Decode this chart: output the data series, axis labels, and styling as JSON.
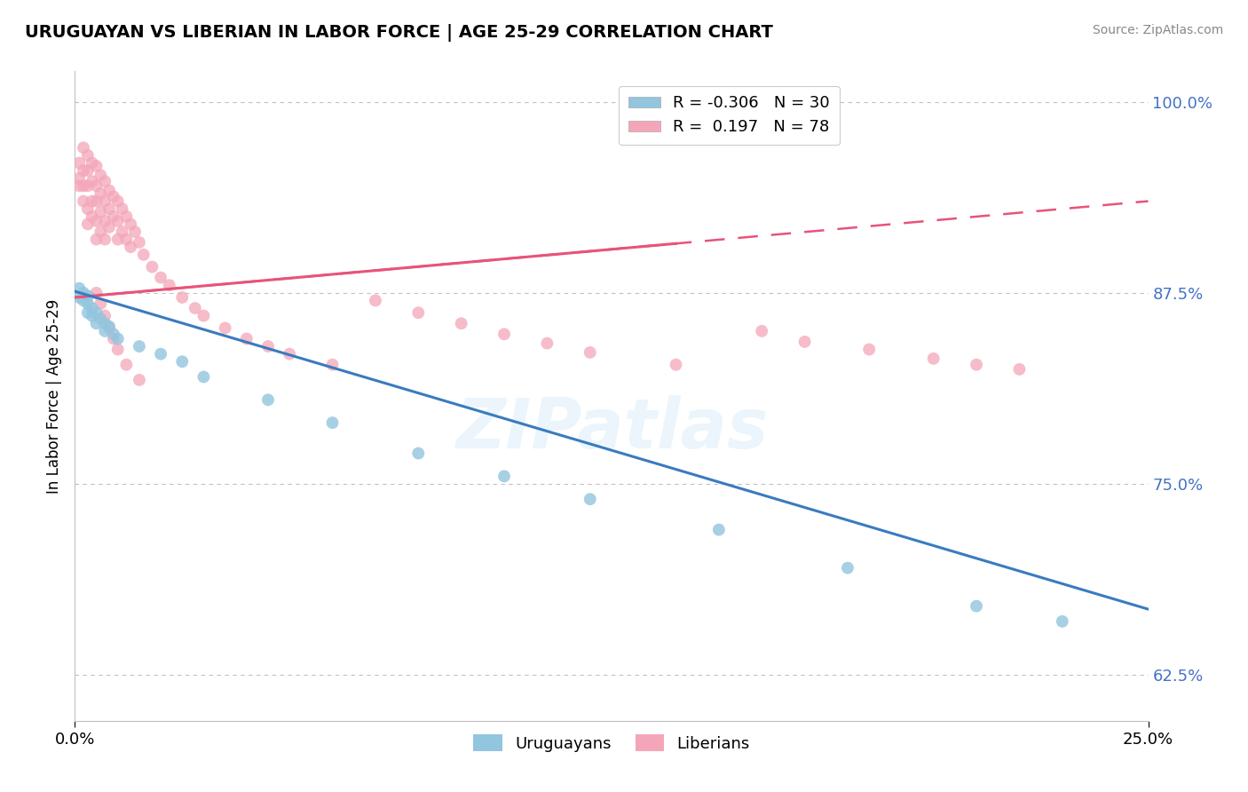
{
  "title": "URUGUAYAN VS LIBERIAN IN LABOR FORCE | AGE 25-29 CORRELATION CHART",
  "source": "Source: ZipAtlas.com",
  "ylabel": "In Labor Force | Age 25-29",
  "y_ticks": [
    0.625,
    0.75,
    0.875,
    1.0
  ],
  "y_tick_labels": [
    "62.5%",
    "75.0%",
    "87.5%",
    "100.0%"
  ],
  "uruguayan_R": -0.306,
  "uruguayan_N": 30,
  "liberian_R": 0.197,
  "liberian_N": 78,
  "uruguayan_color": "#92c5de",
  "liberian_color": "#f4a6b8",
  "uruguayan_line_color": "#3a7bbf",
  "liberian_line_color": "#e8537a",
  "watermark": "ZIPatlas",
  "uruguayan_x": [
    0.001,
    0.001,
    0.002,
    0.002,
    0.003,
    0.003,
    0.003,
    0.004,
    0.004,
    0.005,
    0.005,
    0.006,
    0.007,
    0.007,
    0.008,
    0.009,
    0.01,
    0.015,
    0.02,
    0.025,
    0.03,
    0.045,
    0.06,
    0.08,
    0.1,
    0.12,
    0.15,
    0.18,
    0.21,
    0.23
  ],
  "uruguayan_y": [
    0.878,
    0.872,
    0.875,
    0.87,
    0.873,
    0.868,
    0.862,
    0.865,
    0.86,
    0.862,
    0.855,
    0.858,
    0.855,
    0.85,
    0.853,
    0.848,
    0.845,
    0.84,
    0.835,
    0.83,
    0.82,
    0.805,
    0.79,
    0.77,
    0.755,
    0.74,
    0.72,
    0.695,
    0.67,
    0.66
  ],
  "liberian_x": [
    0.001,
    0.001,
    0.001,
    0.002,
    0.002,
    0.002,
    0.002,
    0.003,
    0.003,
    0.003,
    0.003,
    0.003,
    0.004,
    0.004,
    0.004,
    0.004,
    0.005,
    0.005,
    0.005,
    0.005,
    0.005,
    0.006,
    0.006,
    0.006,
    0.006,
    0.007,
    0.007,
    0.007,
    0.007,
    0.008,
    0.008,
    0.008,
    0.009,
    0.009,
    0.01,
    0.01,
    0.01,
    0.011,
    0.011,
    0.012,
    0.012,
    0.013,
    0.013,
    0.014,
    0.015,
    0.016,
    0.018,
    0.02,
    0.022,
    0.025,
    0.028,
    0.03,
    0.035,
    0.04,
    0.045,
    0.05,
    0.06,
    0.07,
    0.08,
    0.09,
    0.1,
    0.11,
    0.12,
    0.14,
    0.16,
    0.17,
    0.185,
    0.2,
    0.21,
    0.22,
    0.005,
    0.006,
    0.007,
    0.008,
    0.009,
    0.01,
    0.012,
    0.015
  ],
  "liberian_y": [
    0.96,
    0.95,
    0.945,
    0.97,
    0.955,
    0.945,
    0.935,
    0.965,
    0.955,
    0.945,
    0.93,
    0.92,
    0.96,
    0.948,
    0.935,
    0.925,
    0.958,
    0.945,
    0.935,
    0.922,
    0.91,
    0.952,
    0.94,
    0.928,
    0.915,
    0.948,
    0.935,
    0.922,
    0.91,
    0.942,
    0.93,
    0.918,
    0.938,
    0.925,
    0.935,
    0.922,
    0.91,
    0.93,
    0.915,
    0.925,
    0.91,
    0.92,
    0.905,
    0.915,
    0.908,
    0.9,
    0.892,
    0.885,
    0.88,
    0.872,
    0.865,
    0.86,
    0.852,
    0.845,
    0.84,
    0.835,
    0.828,
    0.87,
    0.862,
    0.855,
    0.848,
    0.842,
    0.836,
    0.828,
    0.85,
    0.843,
    0.838,
    0.832,
    0.828,
    0.825,
    0.875,
    0.868,
    0.86,
    0.852,
    0.845,
    0.838,
    0.828,
    0.818
  ]
}
